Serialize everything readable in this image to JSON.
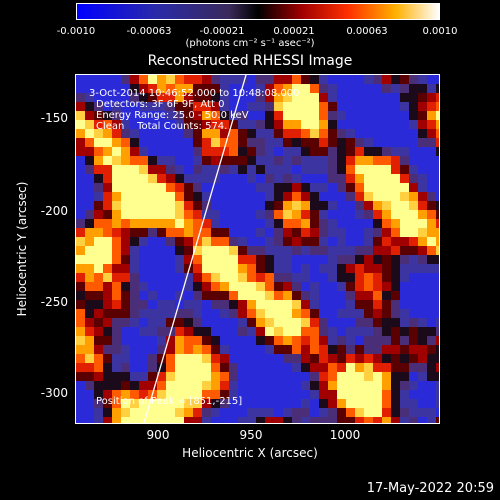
{
  "colorbar": {
    "ticks": [
      "-0.0010",
      "-0.00063",
      "-0.00021",
      "0.00021",
      "0.00063",
      "0.0010"
    ],
    "units": "(photons cm⁻² s⁻¹ asec⁻²)",
    "min": -0.001,
    "max": 0.001
  },
  "title": "Reconstructed RHESSI Image",
  "annotations": {
    "time": "3-Oct-2014 10:46:52.000 to 10:48:08.000",
    "detectors": "Detectors: 3F 6F 9F, Att 0",
    "energy": "Energy Range: 25.0 - 50.0 keV",
    "clean": "Clean    Total Counts: 574.",
    "peak": "Position of Peak = [851,-215]"
  },
  "axes": {
    "xlabel": "Heliocentric X (arcsec)",
    "ylabel": "Heliocentric Y (arcsec)",
    "xticks": [
      "900",
      "950",
      "1000"
    ],
    "yticks": [
      "-150",
      "-200",
      "-250",
      "-300"
    ]
  },
  "limb_line": true,
  "timestamp": "17-May-2022 20:59"
}
